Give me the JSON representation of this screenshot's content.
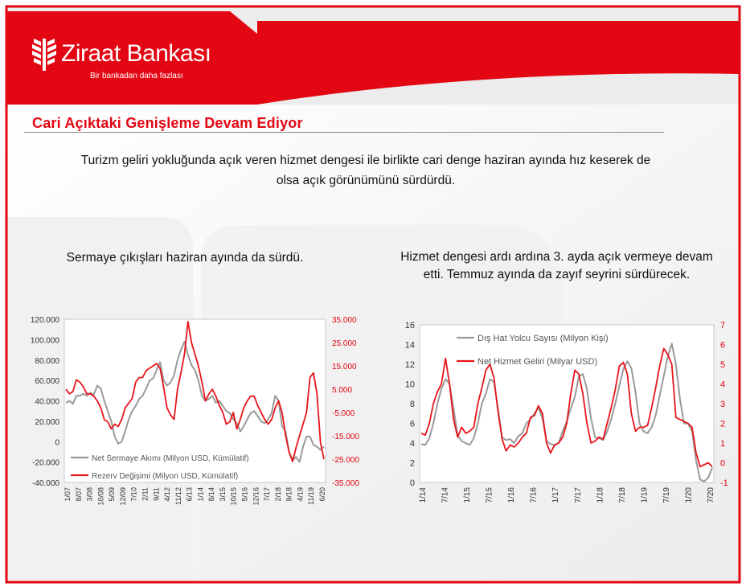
{
  "brand": {
    "name": "Ziraat Bankası",
    "slogan": "Bir bankadan daha fazlası"
  },
  "title": "Cari Açıktaki Genişleme Devam Ediyor",
  "intro": {
    "line1": "Turizm geliri yokluğunda açık veren hizmet dengesi ile birlikte cari denge  haziran ayında hız keserek de",
    "line2": "olsa açık görünümünü sürdürdü."
  },
  "left_caption": "Sermaye çıkışları haziran ayında da sürdü.",
  "right_caption": {
    "line1": "Hizmet dengesi ardı ardına 3. ayda açık vermeye devam",
    "line2": "etti. Temmuz ayında da zayıf seyrini sürdürecek."
  },
  "colors": {
    "brand_red": "#e30613",
    "series_red": "#e8151b",
    "series_gray": "#9a9a9a"
  },
  "chart_data": [
    {
      "type": "line",
      "y_left_ticks": [
        "120.000",
        "100.000",
        "80.000",
        "60.000",
        "40.000",
        "20.000",
        "0",
        "-20.000",
        "-40.000"
      ],
      "y_right_ticks": [
        "35.000",
        "25.000",
        "15.000",
        "5.000",
        "-5.000",
        "-15.000",
        "-25.000",
        "-35.000"
      ],
      "x_ticks": [
        "1/07",
        "8/07",
        "3/08",
        "10/08",
        "5/09",
        "12/09",
        "7/10",
        "2/11",
        "9/11",
        "4/12",
        "11/12",
        "6/13",
        "1/14",
        "8/14",
        "3/15",
        "10/15",
        "5/16",
        "12/16",
        "7/17",
        "2/18",
        "9/18",
        "4/19",
        "11/19",
        "6/20"
      ],
      "ylim_left": [
        -40000,
        120000
      ],
      "ylim_right": [
        -35000,
        35000
      ],
      "series": [
        {
          "name": "Net Sermaye Akımı (Milyon USD, Kümülatif)",
          "axis": "left",
          "color": "#9a9a9a",
          "values": [
            38000,
            40000,
            37000,
            45000,
            45000,
            47000,
            45000,
            48000,
            46000,
            55000,
            52000,
            40000,
            30000,
            20000,
            5000,
            -2000,
            0,
            10000,
            22000,
            30000,
            35000,
            42000,
            45000,
            52000,
            60000,
            62000,
            70000,
            78000,
            60000,
            55000,
            58000,
            65000,
            80000,
            90000,
            98000,
            85000,
            75000,
            70000,
            60000,
            45000,
            40000,
            42000,
            45000,
            38000,
            40000,
            35000,
            30000,
            28000,
            22000,
            18000,
            10000,
            15000,
            22000,
            28000,
            30000,
            25000,
            20000,
            18000,
            22000,
            28000,
            45000,
            40000,
            15000,
            10000,
            -10000,
            -18000,
            -15000,
            -20000,
            -5000,
            5000,
            5000,
            -3000,
            -5000,
            -8000,
            -5000
          ],
          "legend_visible": true
        },
        {
          "name": "Rezerv Değişimi (Milyon USD, Kümülatif)",
          "axis": "right",
          "color": "#e8151b",
          "values": [
            5000,
            3000,
            4000,
            9000,
            8000,
            6000,
            3000,
            3000,
            2000,
            0,
            -3000,
            -8000,
            -9000,
            -12000,
            -10000,
            -11000,
            -8000,
            -3000,
            -1000,
            1000,
            8000,
            10000,
            10000,
            13000,
            14000,
            15000,
            16000,
            14000,
            6000,
            -3000,
            -6000,
            -8000,
            5000,
            12000,
            20000,
            34000,
            25000,
            20000,
            15000,
            8000,
            0,
            3000,
            5000,
            2000,
            -2000,
            -5000,
            -10000,
            -9000,
            -5000,
            -12000,
            -8000,
            -3000,
            0,
            2000,
            2000,
            -2000,
            -5000,
            -8000,
            -10000,
            -8000,
            -3000,
            0,
            -5000,
            -15000,
            -22000,
            -26000,
            -20000,
            -15000,
            -10000,
            -5000,
            10000,
            12000,
            3000,
            -18000,
            -25000
          ],
          "legend_visible": true
        }
      ]
    },
    {
      "type": "line",
      "y_left_ticks": [
        "16",
        "14",
        "12",
        "10",
        "8",
        "6",
        "4",
        "2",
        "0"
      ],
      "y_right_ticks": [
        "7",
        "6",
        "5",
        "4",
        "3",
        "2",
        "1",
        "0",
        "-1"
      ],
      "x_ticks": [
        "1/14",
        "7/14",
        "1/15",
        "7/15",
        "1/16",
        "7/16",
        "1/17",
        "7/17",
        "1/18",
        "7/18",
        "1/19",
        "7/19",
        "1/20",
        "7/20"
      ],
      "ylim_left": [
        0,
        16
      ],
      "ylim_right": [
        -1,
        7
      ],
      "series": [
        {
          "name": "Dış Hat Yolcu Sayısı (Milyon Kişi)",
          "axis": "left",
          "color": "#9a9a9a",
          "values": [
            3.9,
            3.8,
            4.5,
            6.0,
            8.0,
            9.5,
            10.5,
            10.0,
            7.5,
            4.8,
            4.2,
            4.0,
            3.8,
            4.5,
            6.0,
            8.0,
            9.0,
            10.5,
            10.2,
            7.5,
            4.6,
            4.3,
            4.4,
            4.0,
            4.7,
            5.0,
            6.0,
            6.4,
            7.0,
            7.6,
            6.5,
            4.2,
            3.9,
            3.8,
            4.0,
            5.2,
            6.2,
            7.5,
            8.7,
            10.8,
            11.0,
            9.5,
            6.5,
            4.6,
            4.5,
            4.3,
            5.2,
            6.4,
            8.0,
            9.8,
            11.5,
            12.3,
            11.6,
            9.2,
            6.0,
            5.2,
            5.0,
            5.6,
            6.8,
            8.8,
            10.8,
            12.8,
            14.1,
            12.0,
            8.5,
            6.0,
            6.0,
            5.2,
            2.2,
            0.3,
            0.1,
            0.5,
            1.5
          ],
          "legend_visible": true
        },
        {
          "name": "Net Hizmet Geliri (Milyar USD)",
          "axis": "right",
          "color": "#e8151b",
          "values": [
            1.5,
            1.4,
            2.0,
            3.0,
            3.6,
            4.0,
            5.3,
            4.0,
            2.2,
            1.3,
            1.8,
            1.5,
            1.6,
            1.8,
            3.0,
            3.8,
            4.7,
            5.0,
            4.3,
            2.6,
            1.2,
            0.6,
            0.9,
            0.8,
            1.0,
            1.3,
            1.5,
            2.3,
            2.4,
            2.9,
            2.5,
            1.0,
            0.5,
            0.9,
            1.0,
            1.3,
            2.0,
            3.5,
            4.7,
            4.5,
            3.5,
            2.0,
            1.0,
            1.1,
            1.3,
            1.2,
            2.0,
            2.8,
            3.7,
            4.9,
            5.1,
            4.5,
            2.5,
            1.6,
            1.8,
            1.8,
            1.9,
            2.8,
            3.8,
            4.9,
            5.8,
            5.5,
            5.0,
            2.3,
            2.2,
            2.1,
            2.0,
            1.8,
            0.5,
            -0.2,
            -0.1,
            0.0,
            -0.2
          ],
          "legend_visible": true
        }
      ]
    }
  ]
}
